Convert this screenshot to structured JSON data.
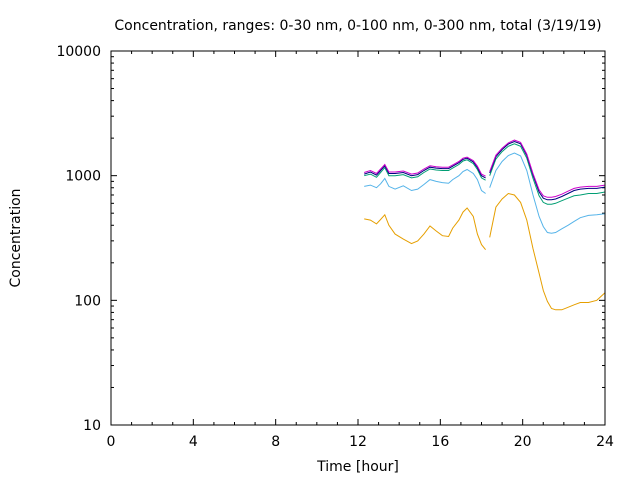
{
  "chart_data": {
    "type": "line",
    "title": "Concentration, ranges: 0-30 nm, 0-100 nm, 0-300 nm, total (3/19/19)",
    "xlabel": "Time [hour]",
    "ylabel": "Concentration",
    "xlim": [
      0,
      24
    ],
    "ylim": [
      10,
      10000
    ],
    "yscale": "log",
    "xticks": [
      0,
      4,
      8,
      12,
      16,
      20,
      24
    ],
    "xtick_labels": [
      "0",
      "4",
      "8",
      "12",
      "16",
      "20",
      "24"
    ],
    "yticks": [
      10,
      100,
      1000,
      10000
    ],
    "ytick_labels": [
      "10",
      "100",
      "1000",
      "10000"
    ],
    "grid": false,
    "legend": "none",
    "series": [
      {
        "color": "#e69f00",
        "x": [
          12.3,
          12.6,
          12.9,
          13.1,
          13.3,
          13.5,
          13.8,
          14.2,
          14.6,
          14.9,
          15.2,
          15.5,
          15.8,
          16.1,
          16.4,
          16.6,
          16.9,
          17.1,
          17.3,
          17.6,
          17.8,
          18.0,
          18.2,
          18.4,
          18.7,
          19.0,
          19.3,
          19.6,
          19.9,
          20.2,
          20.5,
          20.8,
          21.0,
          21.2,
          21.4,
          21.6,
          21.9,
          22.2,
          22.5,
          22.8,
          23.2,
          23.6,
          24.0
        ],
        "y": [
          450,
          440,
          410,
          445,
          485,
          400,
          340,
          310,
          285,
          300,
          340,
          395,
          360,
          330,
          325,
          380,
          440,
          510,
          550,
          470,
          340,
          280,
          255,
          320,
          560,
          650,
          720,
          700,
          610,
          440,
          260,
          165,
          120,
          98,
          86,
          84,
          84,
          88,
          92,
          96,
          96,
          100,
          115
        ]
      },
      {
        "color": "#56b4e9",
        "x": [
          12.3,
          12.6,
          12.9,
          13.1,
          13.3,
          13.5,
          13.8,
          14.2,
          14.6,
          14.9,
          15.2,
          15.5,
          15.8,
          16.1,
          16.4,
          16.6,
          16.9,
          17.1,
          17.3,
          17.6,
          17.8,
          18.0,
          18.2,
          18.4,
          18.7,
          19.0,
          19.3,
          19.6,
          19.9,
          20.2,
          20.5,
          20.8,
          21.0,
          21.2,
          21.4,
          21.6,
          21.9,
          22.2,
          22.5,
          22.8,
          23.2,
          23.6,
          24.0
        ],
        "y": [
          820,
          840,
          800,
          860,
          950,
          820,
          780,
          830,
          760,
          780,
          850,
          930,
          900,
          880,
          870,
          930,
          1000,
          1080,
          1120,
          1040,
          930,
          760,
          720,
          800,
          1100,
          1300,
          1450,
          1520,
          1440,
          1100,
          700,
          470,
          390,
          350,
          345,
          350,
          375,
          400,
          430,
          460,
          480,
          485,
          495
        ]
      },
      {
        "color": "#009e73",
        "x": [
          12.3,
          12.6,
          12.9,
          13.1,
          13.3,
          13.5,
          13.8,
          14.2,
          14.6,
          14.9,
          15.2,
          15.5,
          15.8,
          16.1,
          16.4,
          16.6,
          16.9,
          17.1,
          17.3,
          17.6,
          17.8,
          18.0,
          18.2,
          18.4,
          18.7,
          19.0,
          19.3,
          19.6,
          19.9,
          20.2,
          20.5,
          20.8,
          21.0,
          21.2,
          21.4,
          21.6,
          21.9,
          22.2,
          22.5,
          22.8,
          23.2,
          23.6,
          24.0
        ],
        "y": [
          1000,
          1030,
          970,
          1060,
          1160,
          1000,
          1000,
          1020,
          960,
          980,
          1060,
          1130,
          1110,
          1100,
          1100,
          1150,
          1230,
          1310,
          1340,
          1250,
          1120,
          960,
          920,
          1000,
          1360,
          1560,
          1720,
          1800,
          1720,
          1380,
          950,
          690,
          610,
          590,
          590,
          600,
          630,
          660,
          690,
          700,
          720,
          720,
          740
        ]
      },
      {
        "color": "#000080",
        "x": [
          12.3,
          12.6,
          12.9,
          13.1,
          13.3,
          13.5,
          13.8,
          14.2,
          14.6,
          14.9,
          15.2,
          15.5,
          15.8,
          16.1,
          16.4,
          16.6,
          16.9,
          17.1,
          17.3,
          17.6,
          17.8,
          18.0,
          18.2,
          18.4,
          18.7,
          19.0,
          19.3,
          19.6,
          19.9,
          20.2,
          20.5,
          20.8,
          21.0,
          21.2,
          21.4,
          21.6,
          21.9,
          22.2,
          22.5,
          22.8,
          23.2,
          23.6,
          24.0
        ],
        "y": [
          1030,
          1070,
          1010,
          1100,
          1200,
          1040,
          1040,
          1060,
          1000,
          1020,
          1100,
          1170,
          1150,
          1140,
          1140,
          1190,
          1270,
          1350,
          1380,
          1290,
          1160,
          1000,
          960,
          1050,
          1420,
          1620,
          1790,
          1880,
          1800,
          1450,
          1010,
          740,
          660,
          640,
          640,
          650,
          680,
          720,
          760,
          780,
          790,
          790,
          810
        ]
      },
      {
        "color": "#cc00cc",
        "x": [
          12.3,
          12.6,
          12.9,
          13.1,
          13.3,
          13.5,
          13.8,
          14.2,
          14.6,
          14.9,
          15.2,
          15.5,
          15.8,
          16.1,
          16.4,
          16.6,
          16.9,
          17.1,
          17.3,
          17.6,
          17.8,
          18.0,
          18.2,
          18.4,
          18.7,
          19.0,
          19.3,
          19.6,
          19.9,
          20.2,
          20.5,
          20.8,
          21.0,
          21.2,
          21.4,
          21.6,
          21.9,
          22.2,
          22.5,
          22.8,
          23.2,
          23.6,
          24.0
        ],
        "y": [
          1060,
          1100,
          1040,
          1130,
          1230,
          1070,
          1070,
          1090,
          1030,
          1050,
          1130,
          1200,
          1180,
          1170,
          1170,
          1220,
          1300,
          1380,
          1410,
          1320,
          1190,
          1030,
          990,
          1080,
          1460,
          1660,
          1830,
          1930,
          1850,
          1490,
          1040,
          770,
          690,
          670,
          670,
          680,
          710,
          750,
          790,
          810,
          820,
          820,
          840
        ]
      }
    ]
  }
}
